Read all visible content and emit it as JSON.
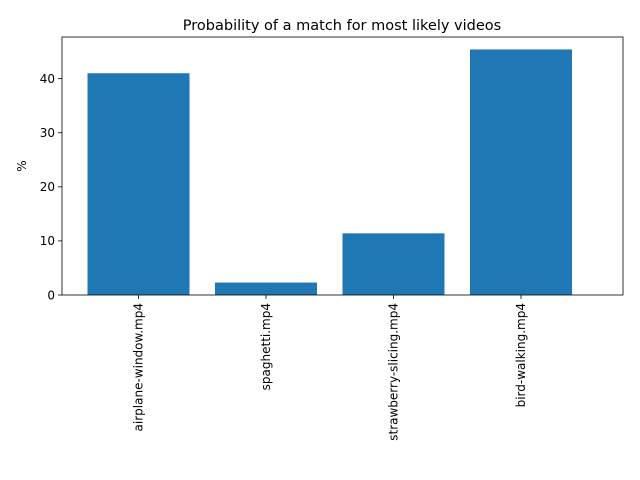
{
  "chart_data": {
    "type": "bar",
    "title": "Probability of a match for most likely videos",
    "xlabel": "",
    "ylabel": "%",
    "categories": [
      "airplane-window.mp4",
      "spaghetti.mp4",
      "strawberry-slicing.mp4",
      "bird-walking.mp4"
    ],
    "values": [
      41.0,
      2.3,
      11.4,
      45.4
    ],
    "ylim": [
      0,
      47.7
    ],
    "yticks": [
      0,
      10,
      20,
      30,
      40
    ],
    "bar_color": "#1f77b4",
    "grid": false,
    "legend": "none"
  }
}
